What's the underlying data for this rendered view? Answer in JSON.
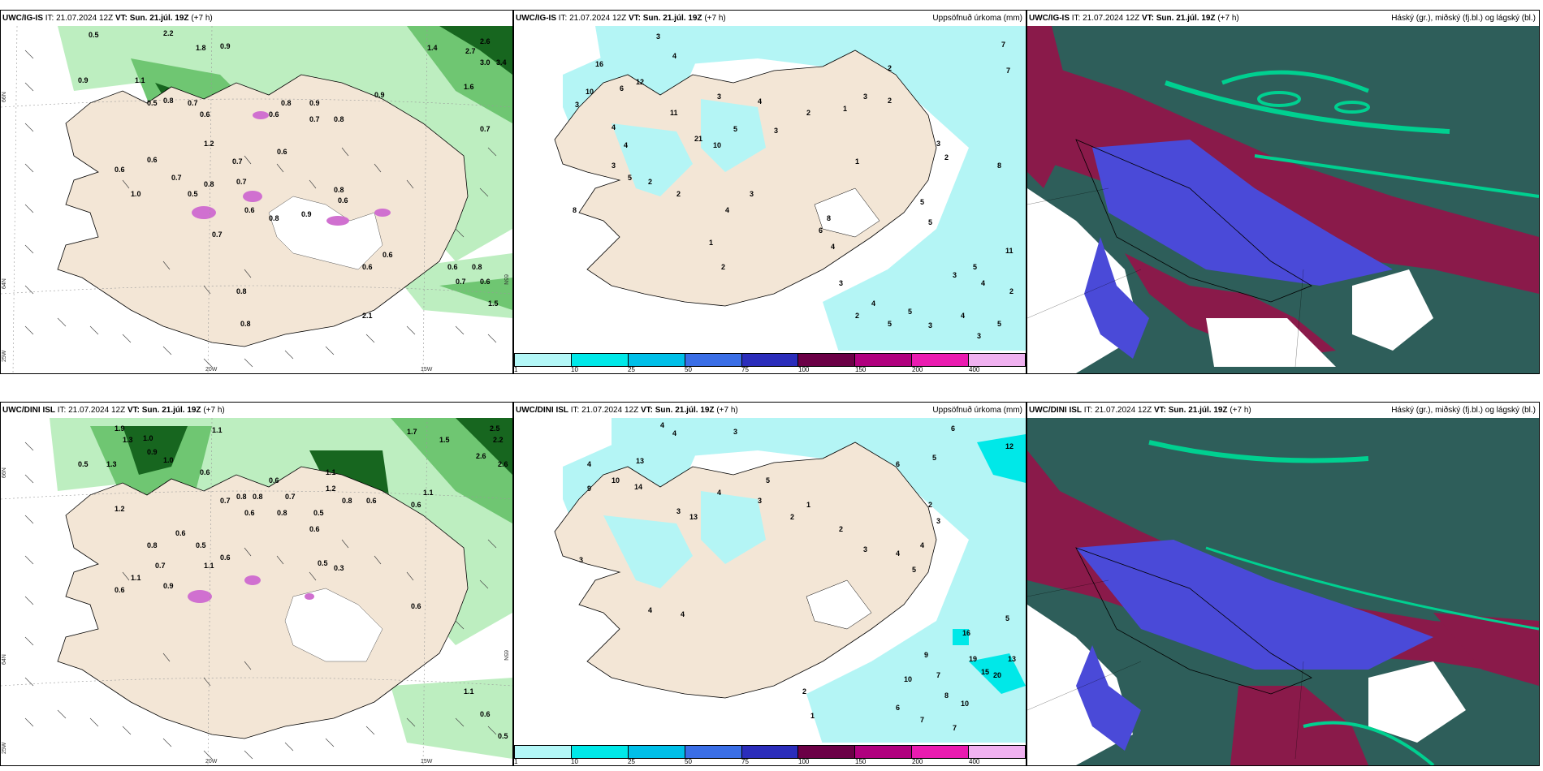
{
  "panels": [
    {
      "model": "UWC/IG-IS",
      "it_label": "IT: 21.07.2024 12Z",
      "vt_label": "VT: Sun. 21.júl. 19Z",
      "offset": "(+7 h)",
      "right_title": "",
      "lat_labels": [
        "66N",
        "64N",
        "65N"
      ],
      "lon_labels": [
        "20W",
        "15W",
        "25W"
      ],
      "values": [
        "0.5",
        "2.2",
        "1.8",
        "0.9",
        "1.4",
        "2.6",
        "2.7",
        "3.0",
        "3.4",
        "0.9",
        "1.1",
        "0.8",
        "0.7",
        "0.6",
        "0.5",
        "1.2",
        "0.9",
        "0.8",
        "0.7",
        "0.6",
        "0.6",
        "1.6",
        "0.7",
        "0.8",
        "0.9",
        "0.6",
        "1.0",
        "0.6",
        "0.7",
        "0.5",
        "0.8",
        "0.7",
        "0.7",
        "0.6",
        "0.8",
        "0.9",
        "0.8",
        "0.6",
        "0.7",
        "0.8",
        "0.6",
        "0.6",
        "2.1",
        "0.8",
        "0.6",
        "0.7",
        "0.8",
        "0.6",
        "1.5"
      ]
    },
    {
      "model": "UWC/IG-IS",
      "it_label": "IT: 21.07.2024 12Z",
      "vt_label": "VT: Sun. 21.júl. 19Z",
      "offset": "(+7 h)",
      "right_title": "Uppsöfnuð úrkoma (mm)",
      "values": [
        "3",
        "4",
        "7",
        "7",
        "16",
        "12",
        "10",
        "11",
        "3",
        "6",
        "4",
        "4",
        "3",
        "5",
        "21",
        "10",
        "3",
        "4",
        "5",
        "3",
        "2",
        "1",
        "3",
        "2",
        "2",
        "1",
        "8",
        "3",
        "2",
        "5",
        "6",
        "8",
        "2",
        "2",
        "4",
        "3",
        "4",
        "5",
        "11",
        "3",
        "5",
        "4",
        "2",
        "5",
        "3",
        "4",
        "3",
        "5",
        "2",
        "4",
        "5",
        "3",
        "1",
        "2",
        "8"
      ]
    },
    {
      "model": "UWC/IG-IS",
      "it_label": "IT: 21.07.2024 12Z",
      "vt_label": "VT: Sun. 21.júl. 19Z",
      "offset": "(+7 h)",
      "right_title": "Háský (gr.), miðský (fj.bl.) og lágský (bl.)"
    },
    {
      "model": "UWC/DINI ISL",
      "it_label": "IT: 21.07.2024 12Z",
      "vt_label": "VT: Sun. 21.júl. 19Z",
      "offset": "(+7 h)",
      "right_title": "",
      "lat_labels": [
        "66N",
        "64N",
        "65N"
      ],
      "lon_labels": [
        "20W",
        "15W",
        "25W"
      ],
      "values": [
        "1.9",
        "1.3",
        "1.0",
        "1.1",
        "1.7",
        "1.5",
        "2.5",
        "2.2",
        "2.6",
        "2.6",
        "0.5",
        "1.3",
        "0.9",
        "1.0",
        "0.8",
        "1.1",
        "1.2",
        "0.6",
        "0.7",
        "0.8",
        "0.6",
        "0.7",
        "1.2",
        "0.8",
        "0.6",
        "0.5",
        "0.6",
        "0.8",
        "0.5",
        "0.6",
        "0.7",
        "1.1",
        "0.6",
        "0.9",
        "1.1",
        "0.6",
        "0.8",
        "0.6",
        "0.5",
        "0.3",
        "0.6",
        "1.1",
        "0.6",
        "0.6",
        "0.5",
        "1.1"
      ]
    },
    {
      "model": "UWC/DINI ISL",
      "it_label": "IT: 21.07.2024 12Z",
      "vt_label": "VT: Sun. 21.júl. 19Z",
      "offset": "(+7 h)",
      "right_title": "Uppsöfnuð úrkoma (mm)",
      "values": [
        "4",
        "4",
        "3",
        "6",
        "12",
        "13",
        "5",
        "6",
        "4",
        "10",
        "9",
        "14",
        "3",
        "4",
        "5",
        "13",
        "3",
        "2",
        "1",
        "2",
        "3",
        "4",
        "5",
        "2",
        "3",
        "4",
        "16",
        "19",
        "15",
        "20",
        "13",
        "5",
        "10",
        "7",
        "9",
        "8",
        "10",
        "6",
        "7",
        "7",
        "2",
        "1",
        "3",
        "4",
        "4"
      ]
    },
    {
      "model": "UWC/DINI ISL",
      "it_label": "IT: 21.07.2024 12Z",
      "vt_label": "VT: Sun. 21.júl. 19Z",
      "offset": "(+7 h)",
      "right_title": "Háský (gr.), miðský (fj.bl.) og lágský (bl.)"
    }
  ],
  "colorbar": {
    "labels": [
      "1",
      "10",
      "25",
      "50",
      "75",
      "100",
      "150",
      "200",
      "400"
    ],
    "colors": [
      "#b3f7f7",
      "#00e8e8",
      "#00bfe8",
      "#3a6ee6",
      "#2b2dbb",
      "#6b0046",
      "#b0007e",
      "#ea1bb0",
      "#f0b1f0"
    ]
  },
  "colors": {
    "land": "#f3e6d6",
    "sea_precip": "#b4f5f5",
    "green_light": "#bdeec0",
    "green_mid": "#6fc672",
    "green_dark": "#17661f",
    "cloud_high": "#2e5e5a",
    "cloud_mid": "#8a1a4a",
    "cloud_low": "#4a4ad8"
  }
}
